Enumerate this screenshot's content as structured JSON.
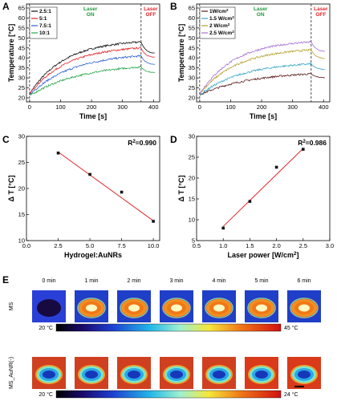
{
  "panels": {
    "A": "A",
    "B": "B",
    "C": "C",
    "D": "D",
    "E": "E"
  },
  "chart_data": [
    {
      "type": "line",
      "id": "A",
      "xlabel": "Time [s]",
      "ylabel": "Temperature [°C]",
      "xlim": [
        -10,
        420
      ],
      "ylim": [
        18,
        67
      ],
      "xticks": [
        0,
        100,
        200,
        300,
        400
      ],
      "yticks": [
        20,
        25,
        30,
        35,
        40,
        45,
        50,
        55,
        60,
        65
      ],
      "laser_on_label": [
        "Laser",
        "ON"
      ],
      "laser_off_label": [
        "Laser",
        "OFF"
      ],
      "laser_on_x": 0,
      "laser_off_x": 360,
      "legend_position": "top-left",
      "series": [
        {
          "name": "2.5:1",
          "color": "#111111",
          "start": 22,
          "peak": 48,
          "end": 42,
          "k": 3.2
        },
        {
          "name": "5:1",
          "color": "#e3262b",
          "start": 22,
          "peak": 45,
          "end": 40,
          "k": 3.0
        },
        {
          "name": "7.5:1",
          "color": "#2b5fd6",
          "start": 21.5,
          "peak": 41,
          "end": 36.5,
          "k": 2.6
        },
        {
          "name": "10:1",
          "color": "#27a84a",
          "start": 21,
          "peak": 35.5,
          "end": 32.5,
          "k": 2.2
        }
      ]
    },
    {
      "type": "line",
      "id": "B",
      "xlabel": "Time [s]",
      "ylabel": "Temperature [°C]",
      "xlim": [
        -10,
        420
      ],
      "ylim": [
        18,
        67
      ],
      "xticks": [
        0,
        100,
        200,
        300,
        400
      ],
      "yticks": [
        20,
        25,
        30,
        35,
        40,
        45,
        50,
        55,
        60,
        65
      ],
      "laser_on_label": [
        "Laser",
        "ON"
      ],
      "laser_off_label": [
        "Laser",
        "OFF"
      ],
      "laser_on_x": 0,
      "laser_off_x": 360,
      "legend_position": "top-left",
      "series": [
        {
          "name": "1W/cm²",
          "color": "#5a1a1a",
          "start": 21.5,
          "peak": 32,
          "end": 30,
          "k": 2.2
        },
        {
          "name": "1.5 W/cm²",
          "color": "#3aa9c9",
          "start": 21.5,
          "peak": 37,
          "end": 34,
          "k": 2.6
        },
        {
          "name": "2 W/cm²",
          "color": "#b5a02a",
          "start": 22,
          "peak": 44,
          "end": 39.5,
          "k": 3.0
        },
        {
          "name": "2.5 W/cm²",
          "color": "#a86fd6",
          "start": 22,
          "peak": 48,
          "end": 43,
          "k": 3.2
        }
      ]
    },
    {
      "type": "scatter",
      "id": "C",
      "xlabel": "Hydrogel:AuNRs",
      "ylabel": "Δ T [°C]",
      "xlim": [
        0,
        10.5
      ],
      "ylim": [
        10,
        30
      ],
      "xticks": [
        0.0,
        2.5,
        5.0,
        7.5,
        10.0
      ],
      "xtick_labels": [
        "0.0",
        "2.5",
        "5.0",
        "7.5",
        "10.0"
      ],
      "yticks": [
        10,
        15,
        20,
        25,
        30
      ],
      "annotation": "R²=0.990",
      "x": [
        2.5,
        5.0,
        7.5,
        10.0
      ],
      "y": [
        26.8,
        22.7,
        19.3,
        13.7
      ],
      "fit": {
        "x": [
          2.5,
          10.0
        ],
        "y": [
          27.0,
          13.8
        ],
        "color": "#e3262b"
      }
    },
    {
      "type": "scatter",
      "id": "D",
      "xlabel": "Laser power [W/cm²]",
      "ylabel": "Δ T [°C]",
      "xlim": [
        0.5,
        3.0
      ],
      "ylim": [
        5,
        30
      ],
      "xticks": [
        0.5,
        1.0,
        1.5,
        2.0,
        2.5,
        3.0
      ],
      "xtick_labels": [
        "0.5",
        "1.0",
        "1.5",
        "2.0",
        "2.5",
        "3.0"
      ],
      "yticks": [
        5,
        10,
        15,
        20,
        25,
        30
      ],
      "annotation": "R²=0.986",
      "x": [
        1.0,
        1.5,
        2.0,
        2.5
      ],
      "y": [
        8.0,
        14.4,
        22.6,
        26.9
      ],
      "fit": {
        "x": [
          1.0,
          2.5
        ],
        "y": [
          8.4,
          27.1
        ],
        "color": "#e3262b"
      }
    }
  ],
  "thermal": {
    "times": [
      "0 min",
      "1 min",
      "2 min",
      "3 min",
      "4 min",
      "5 min",
      "6 min"
    ],
    "row1_label": "MS",
    "row2_label": "MS_AuNR(-)",
    "row1_intensity": [
      0,
      0.95,
      0.85,
      0.8,
      0.78,
      0.9,
      0.92
    ],
    "row2_intensity": [
      0.35,
      0.4,
      0.45,
      0.5,
      0.55,
      0.62,
      0.7
    ],
    "scale1_min": "20 °C",
    "scale1_max": "45 °C",
    "scale2_min": "20 °C",
    "scale2_max": "24 °C"
  }
}
